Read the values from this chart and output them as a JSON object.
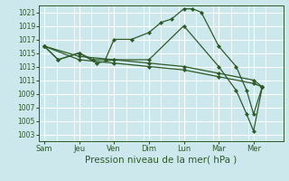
{
  "bg_color": "#cce8ed",
  "grid_color": "#ffffff",
  "line_color": "#2d5a27",
  "marker_color": "#2d5a27",
  "xlabel": "Pression niveau de la mer( hPa )",
  "xlabel_fontsize": 7.5,
  "ylim": [
    1002,
    1022
  ],
  "yticks": [
    1003,
    1005,
    1007,
    1009,
    1011,
    1013,
    1015,
    1017,
    1019,
    1021
  ],
  "xtick_labels": [
    "Sam",
    "Jeu",
    "Ven",
    "Dim",
    "Lun",
    "Mar",
    "Mer"
  ],
  "xtick_positions": [
    0,
    2,
    4,
    6,
    8,
    10,
    12
  ],
  "xlim": [
    -0.3,
    13.5
  ],
  "series": [
    {
      "x": [
        0.0,
        0.8,
        2.0,
        2.8,
        3.5,
        4.0,
        5.0,
        6.0,
        6.7,
        7.3,
        8.0,
        8.5,
        9.0,
        10.0,
        11.0,
        11.6,
        12.0,
        12.5
      ],
      "y": [
        1016,
        1014,
        1015,
        1014,
        1014,
        1017,
        1017,
        1018,
        1019.5,
        1020,
        1021.5,
        1021.5,
        1021,
        1016,
        1013,
        1009.5,
        1006,
        1010
      ]
    },
    {
      "x": [
        0.0,
        0.8,
        2.0,
        3.0,
        4.0,
        6.0,
        8.0,
        10.0,
        11.0,
        11.6,
        12.0,
        12.5
      ],
      "y": [
        1016,
        1014,
        1015,
        1013.5,
        1014,
        1014,
        1019,
        1013,
        1009.5,
        1006,
        1003.5,
        1010
      ]
    },
    {
      "x": [
        0.0,
        2.0,
        4.0,
        6.0,
        8.0,
        10.0,
        12.0,
        12.5
      ],
      "y": [
        1016,
        1014.5,
        1014,
        1013.5,
        1013,
        1012,
        1011,
        1010
      ]
    },
    {
      "x": [
        0.0,
        2.0,
        4.0,
        6.0,
        8.0,
        10.0,
        12.0,
        12.5
      ],
      "y": [
        1016,
        1014,
        1013.5,
        1013,
        1012.5,
        1011.5,
        1010.5,
        1010
      ]
    }
  ]
}
